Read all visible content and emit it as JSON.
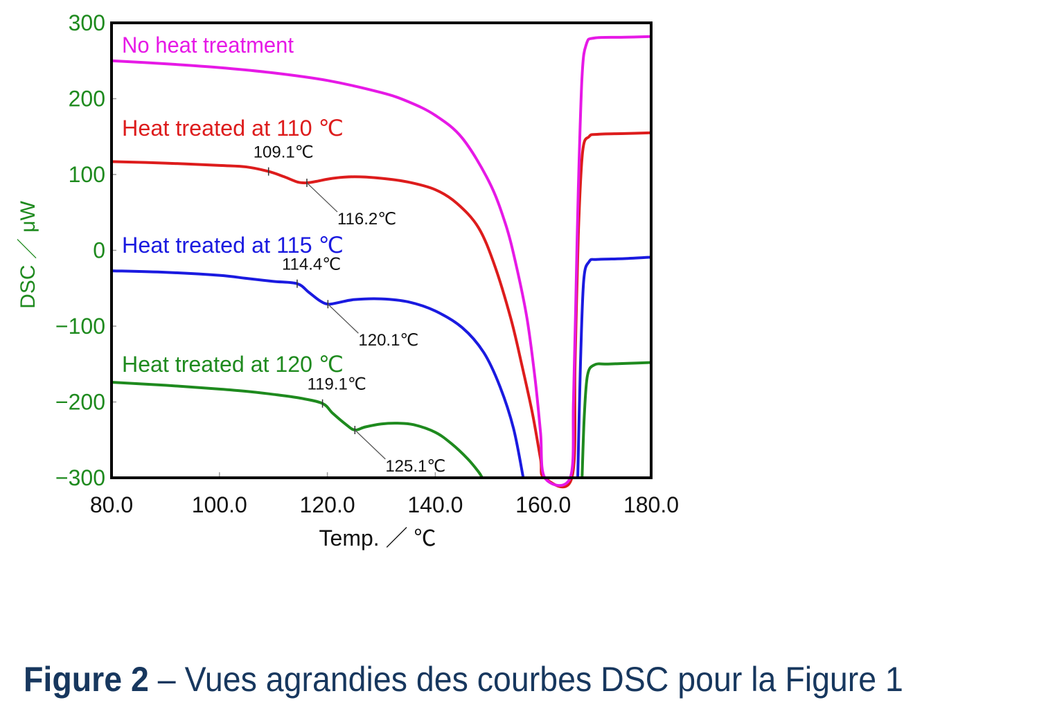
{
  "figure": {
    "caption_bold": "Figure 2",
    "caption_rest": " – Vues agrandies des courbes DSC pour la Figure 1"
  },
  "chart_data": {
    "type": "line",
    "title": "",
    "xlabel": "Temp. ／ ℃",
    "ylabel": "DSC ／ μW",
    "xlim": [
      80,
      180
    ],
    "ylim": [
      -300,
      300
    ],
    "x_ticks": [
      "80.0",
      "100.0",
      "120.0",
      "140.0",
      "160.0",
      "180.0"
    ],
    "y_ticks": [
      "300",
      "200",
      "100",
      "0",
      "−100",
      "−200",
      "−300"
    ],
    "grid": false,
    "legend_position": "inline labels above each curve",
    "colors": {
      "axis_label": "#1e8a1e",
      "tick_label_x": "#111111",
      "frame": "#000000"
    },
    "series": [
      {
        "name": "No heat treatment",
        "color": "#e619e6",
        "points": [
          [
            80,
            250
          ],
          [
            90,
            246
          ],
          [
            100,
            241
          ],
          [
            110,
            234
          ],
          [
            120,
            224
          ],
          [
            130,
            208
          ],
          [
            135,
            196
          ],
          [
            140,
            178
          ],
          [
            145,
            148
          ],
          [
            150,
            90
          ],
          [
            153,
            35
          ],
          [
            155,
            -20
          ],
          [
            157,
            -90
          ],
          [
            158.5,
            -170
          ],
          [
            159.5,
            -240
          ],
          [
            160.3,
            -300
          ],
          [
            165.0,
            -300
          ],
          [
            165.6,
            -200
          ],
          [
            166,
            -80
          ],
          [
            166.5,
            80
          ],
          [
            167.2,
            230
          ],
          [
            168,
            272
          ],
          [
            169.5,
            280
          ],
          [
            175,
            281
          ],
          [
            180,
            282
          ]
        ],
        "annotations": []
      },
      {
        "name": "Heat treated at 110 ℃",
        "color": "#dd1c1c",
        "points": [
          [
            80,
            117
          ],
          [
            90,
            115
          ],
          [
            100,
            112
          ],
          [
            105,
            110
          ],
          [
            109.1,
            104
          ],
          [
            112,
            97
          ],
          [
            114.5,
            90
          ],
          [
            116.2,
            89
          ],
          [
            118,
            91
          ],
          [
            121,
            95
          ],
          [
            125,
            97
          ],
          [
            130,
            95
          ],
          [
            135,
            90
          ],
          [
            140,
            80
          ],
          [
            144,
            62
          ],
          [
            148,
            30
          ],
          [
            151,
            -20
          ],
          [
            154,
            -90
          ],
          [
            156,
            -150
          ],
          [
            158,
            -215
          ],
          [
            159.5,
            -275
          ],
          [
            160.2,
            -300
          ],
          [
            165.3,
            -300
          ],
          [
            165.9,
            -150
          ],
          [
            166.5,
            20
          ],
          [
            167.3,
            130
          ],
          [
            168.5,
            150
          ],
          [
            170,
            153
          ],
          [
            175,
            154
          ],
          [
            180,
            155
          ]
        ],
        "annotations": [
          {
            "label": "109.1℃",
            "x": 109.1,
            "y": 104
          },
          {
            "label": "116.2℃",
            "x": 116.2,
            "y": 89
          }
        ]
      },
      {
        "name": "Heat treated at 115 ℃",
        "color": "#1a1ae0",
        "points": [
          [
            80,
            -27
          ],
          [
            90,
            -29
          ],
          [
            100,
            -33
          ],
          [
            105,
            -37
          ],
          [
            110,
            -41
          ],
          [
            114.4,
            -44
          ],
          [
            116.5,
            -55
          ],
          [
            118.5,
            -66
          ],
          [
            120.1,
            -71
          ],
          [
            122,
            -69
          ],
          [
            125,
            -65
          ],
          [
            130,
            -64
          ],
          [
            135,
            -68
          ],
          [
            140,
            -80
          ],
          [
            145,
            -102
          ],
          [
            149,
            -135
          ],
          [
            152,
            -180
          ],
          [
            154.5,
            -235
          ],
          [
            156.3,
            -300
          ]
        ],
        "points_after_melt": [
          [
            166.4,
            -300
          ],
          [
            166.9,
            -150
          ],
          [
            167.5,
            -40
          ],
          [
            168.5,
            -15
          ],
          [
            170,
            -12
          ],
          [
            175,
            -11
          ],
          [
            180,
            -9
          ]
        ],
        "annotations": [
          {
            "label": "114.4℃",
            "x": 114.4,
            "y": -44
          },
          {
            "label": "120.1℃",
            "x": 120.1,
            "y": -71
          }
        ]
      },
      {
        "name": "Heat treated at 120 ℃",
        "color": "#1e8a1e",
        "points": [
          [
            80,
            -174
          ],
          [
            90,
            -178
          ],
          [
            100,
            -183
          ],
          [
            105,
            -186
          ],
          [
            110,
            -190
          ],
          [
            115,
            -195
          ],
          [
            119.1,
            -202
          ],
          [
            121,
            -215
          ],
          [
            123.5,
            -230
          ],
          [
            125.1,
            -237
          ],
          [
            127,
            -233
          ],
          [
            130,
            -229
          ],
          [
            133,
            -228
          ],
          [
            136,
            -230
          ],
          [
            140,
            -240
          ],
          [
            143,
            -255
          ],
          [
            146,
            -275
          ],
          [
            148,
            -292
          ],
          [
            148.7,
            -300
          ]
        ],
        "points_after_melt": [
          [
            167.2,
            -300
          ],
          [
            167.6,
            -220
          ],
          [
            168.2,
            -165
          ],
          [
            169.5,
            -151
          ],
          [
            172,
            -150
          ],
          [
            176,
            -149
          ],
          [
            180,
            -148
          ]
        ],
        "annotations": [
          {
            "label": "119.1℃",
            "x": 119.1,
            "y": -202
          },
          {
            "label": "125.1℃",
            "x": 125.1,
            "y": -237
          }
        ]
      }
    ]
  }
}
